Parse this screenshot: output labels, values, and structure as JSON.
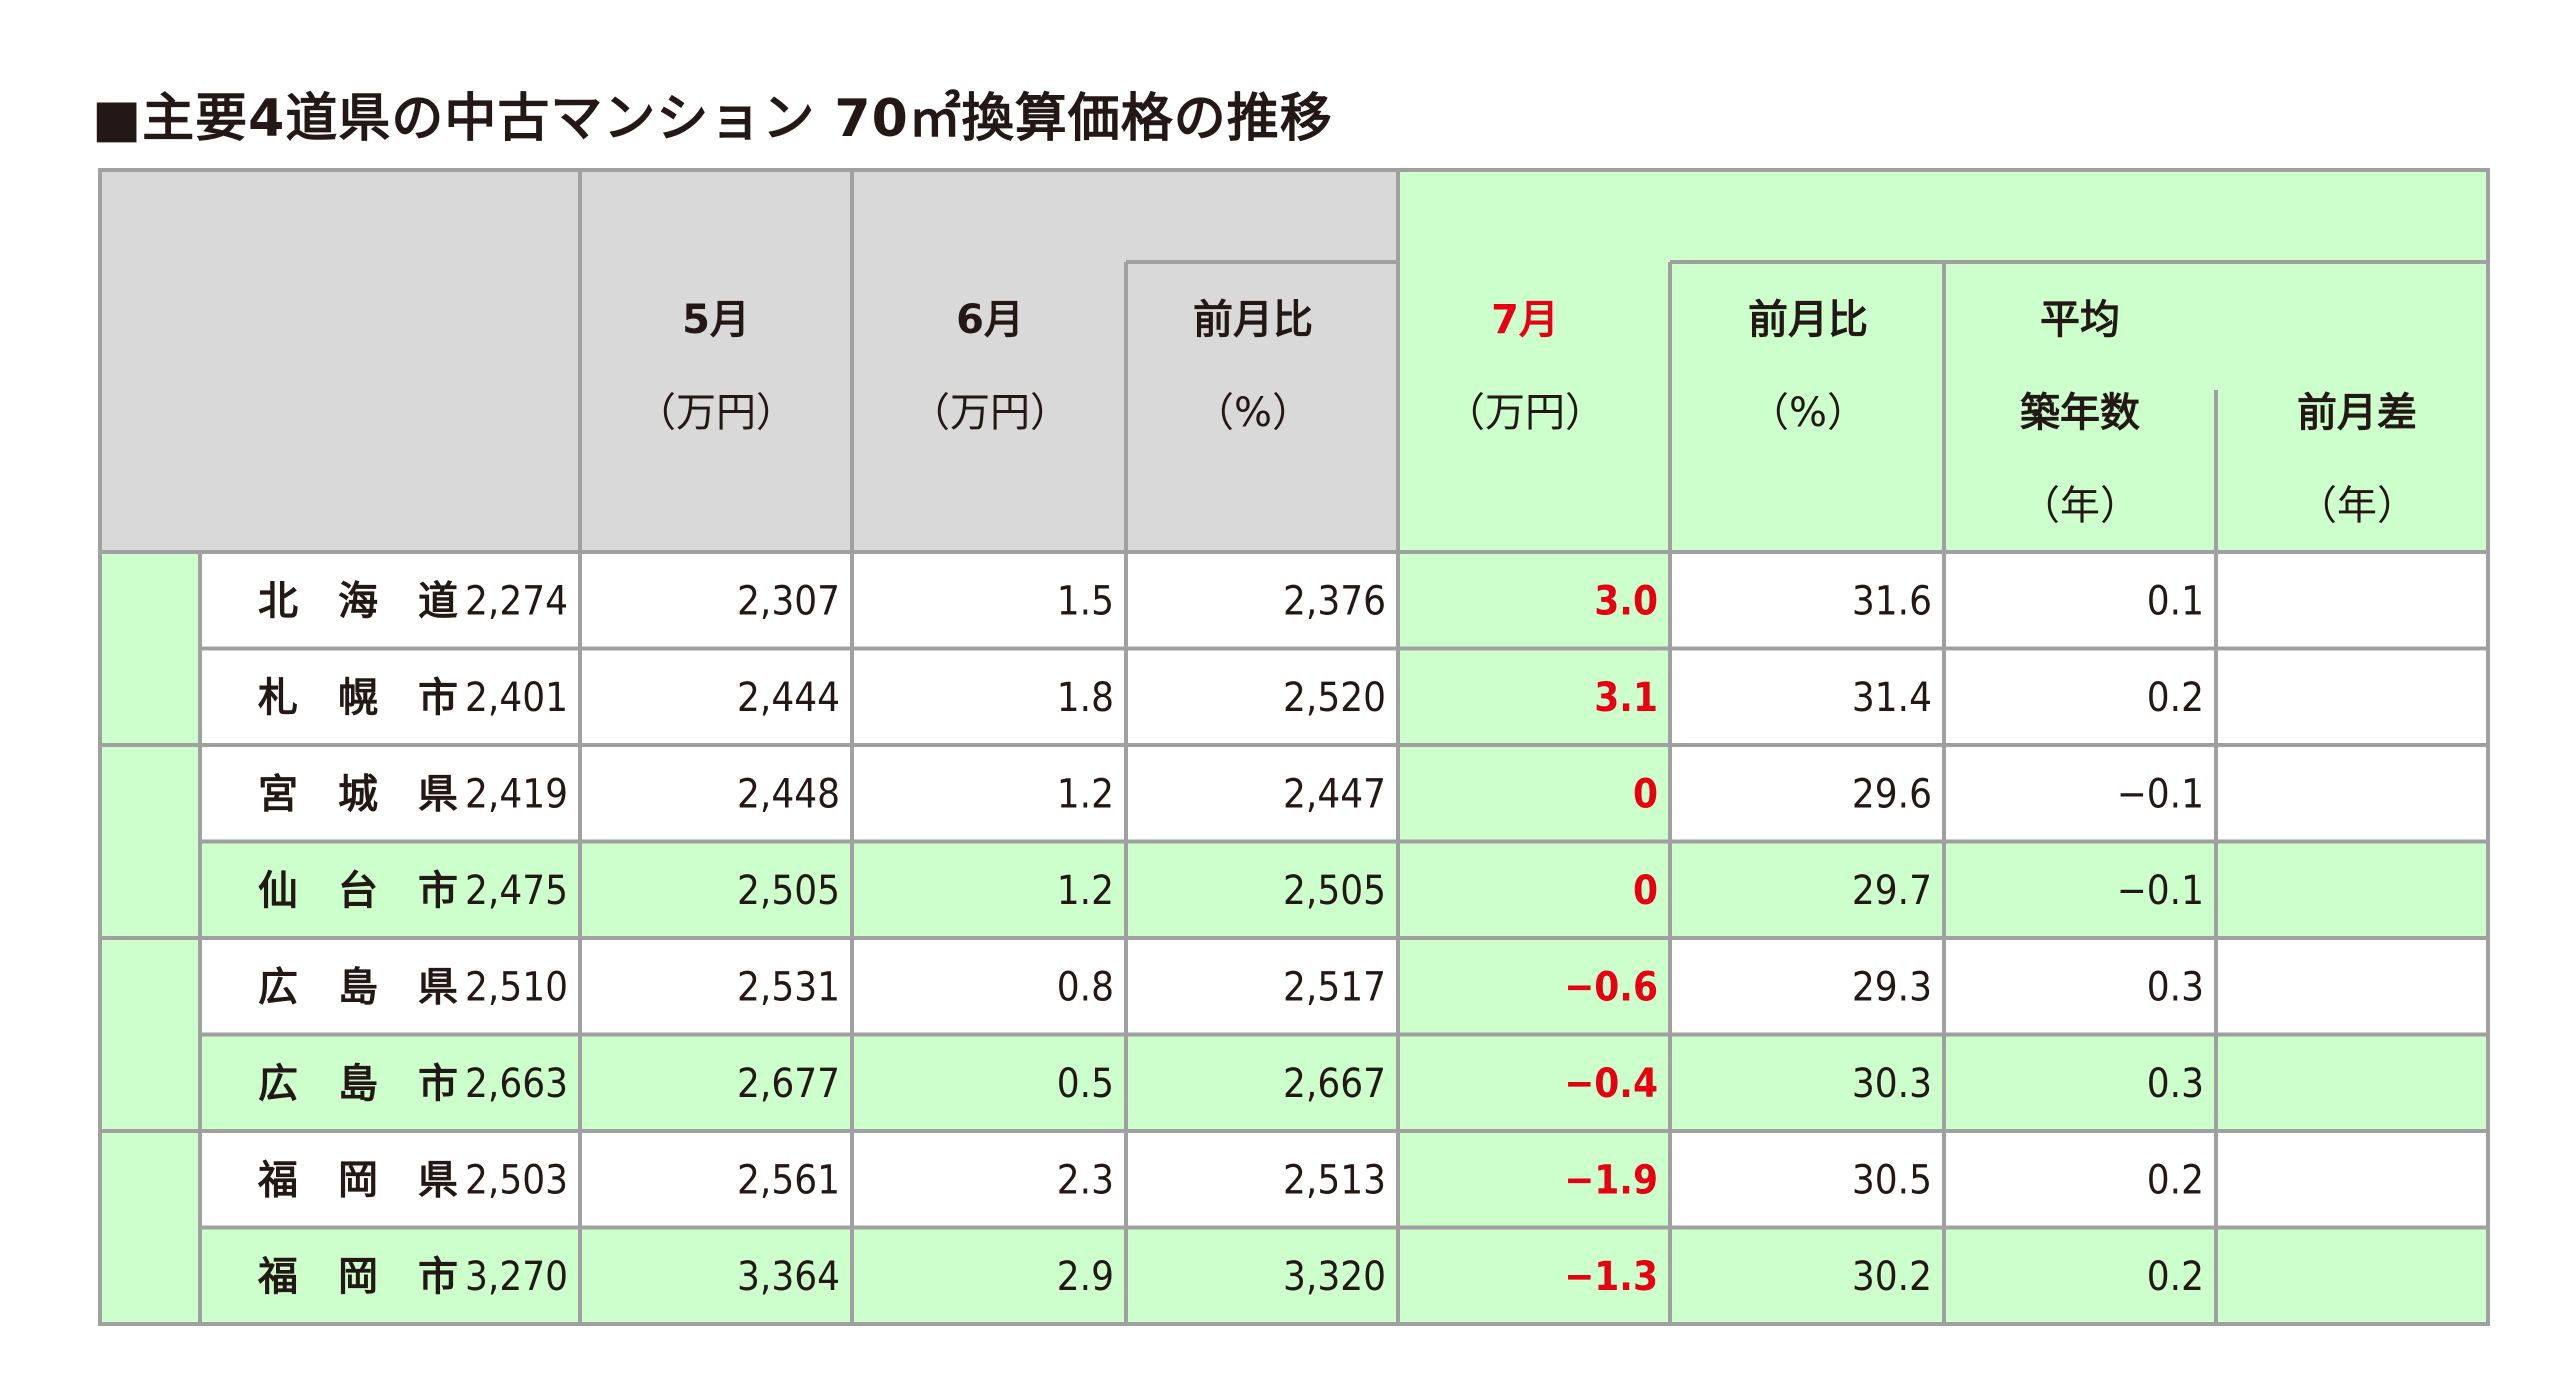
{
  "title": "■主要4道県の中古マンション 70㎡換算価格の推移",
  "colors": {
    "green_fill": "#ccffcc",
    "gray_fill": "#d9d9d9",
    "border": "#a0a0a0",
    "highlight_text": "#e60012",
    "text": "#231815"
  },
  "headers": {
    "may": "5月",
    "may_unit": "（万円）",
    "jun": "6月",
    "jun_unit": "（万円）",
    "mom1": "前月比",
    "mom1_unit": "（%）",
    "jul": "7月",
    "jul_unit": "（万円）",
    "mom2": "前月比",
    "mom2_unit": "（%）",
    "avg": "平均",
    "age": "築年数",
    "age_unit": "（年）",
    "age_diff": "前月差",
    "age_diff_unit": "（年）"
  },
  "chart_data": {
    "type": "table",
    "title": "■主要4道県の中古マンション 70㎡換算価格の推移",
    "rows": [
      {
        "name": "北　海　道",
        "may": "2,274",
        "jun": "2,307",
        "mom1": "1.5",
        "jul": "2,376",
        "mom2": "3.0",
        "age": "31.6",
        "age_diff": "0.1"
      },
      {
        "name": "札　幌　市",
        "may": "2,401",
        "jun": "2,444",
        "mom1": "1.8",
        "jul": "2,520",
        "mom2": "3.1",
        "age": "31.4",
        "age_diff": "0.2"
      },
      {
        "name": "宮　城　県",
        "may": "2,419",
        "jun": "2,448",
        "mom1": "1.2",
        "jul": "2,447",
        "mom2": "0",
        "age": "29.6",
        "age_diff": "−0.1"
      },
      {
        "name": "仙　台　市",
        "may": "2,475",
        "jun": "2,505",
        "mom1": "1.2",
        "jul": "2,505",
        "mom2": "0",
        "age": "29.7",
        "age_diff": "−0.1"
      },
      {
        "name": "広　島　県",
        "may": "2,510",
        "jun": "2,531",
        "mom1": "0.8",
        "jul": "2,517",
        "mom2": "−0.6",
        "age": "29.3",
        "age_diff": "0.3"
      },
      {
        "name": "広　島　市",
        "may": "2,663",
        "jun": "2,677",
        "mom1": "0.5",
        "jul": "2,667",
        "mom2": "−0.4",
        "age": "30.3",
        "age_diff": "0.3"
      },
      {
        "name": "福　岡　県",
        "may": "2,503",
        "jun": "2,561",
        "mom1": "2.3",
        "jul": "2,513",
        "mom2": "−1.9",
        "age": "30.5",
        "age_diff": "0.2"
      },
      {
        "name": "福　岡　市",
        "may": "3,270",
        "jun": "3,364",
        "mom1": "2.9",
        "jul": "3,320",
        "mom2": "−1.3",
        "age": "30.2",
        "age_diff": "0.2"
      }
    ]
  }
}
